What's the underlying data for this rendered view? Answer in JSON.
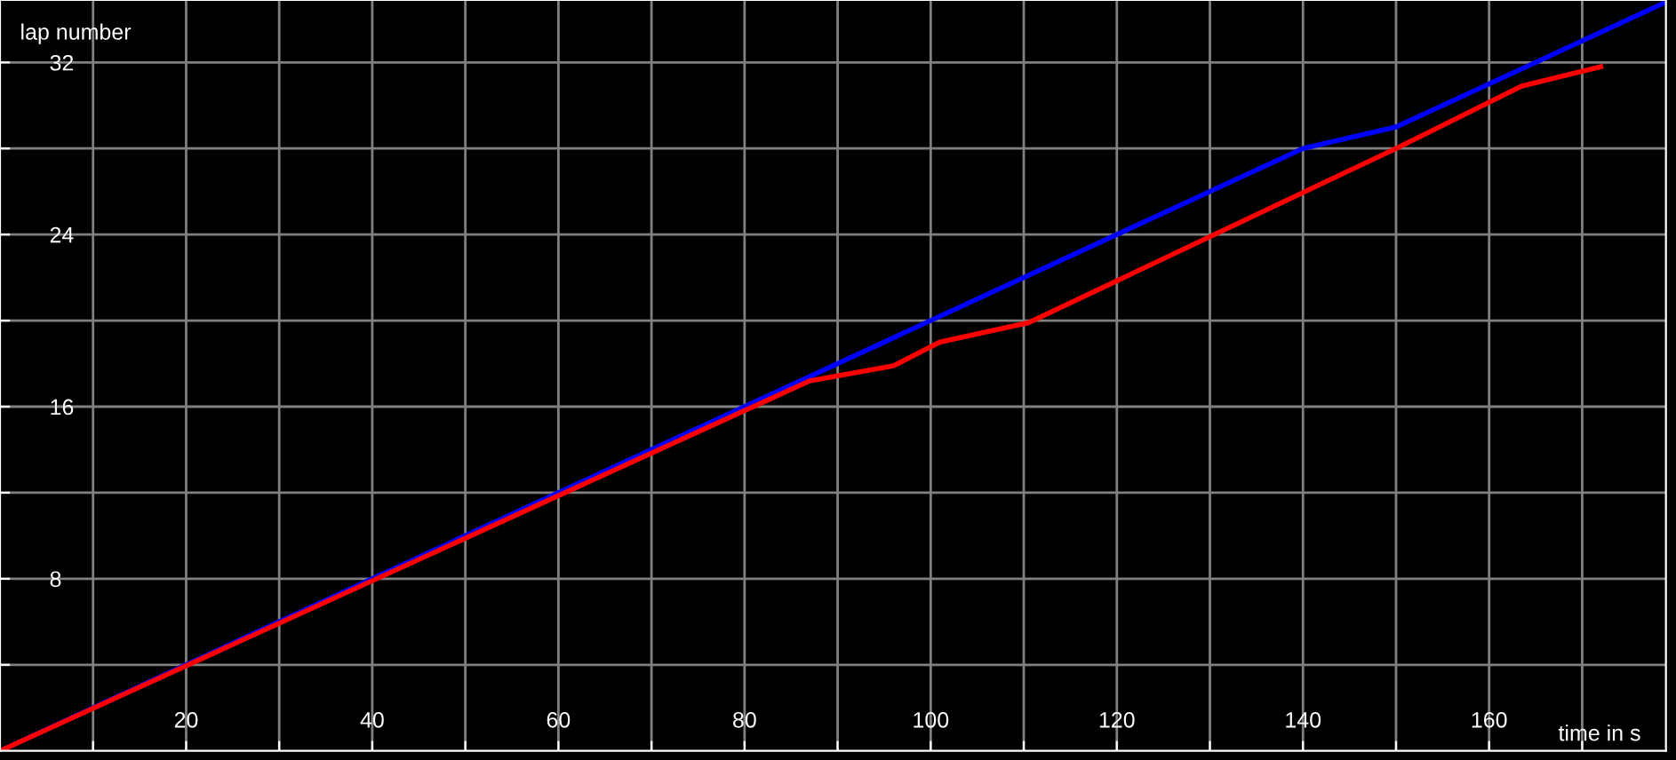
{
  "chart_data": {
    "type": "line",
    "xlabel": "time in s",
    "ylabel": "lap number",
    "series": [
      {
        "color": "#0000ff",
        "x": [
          0,
          140,
          150,
          179
        ],
        "values": [
          0,
          28,
          29,
          34.8
        ]
      },
      {
        "color": "#ff0000",
        "x": [
          0,
          87,
          96,
          101,
          110.5,
          150,
          163.5,
          172
        ],
        "values": [
          0,
          17.2,
          17.9,
          19,
          19.9,
          28,
          30.9,
          31.8
        ]
      }
    ],
    "xlim": [
      0,
      179
    ],
    "ylim": [
      0,
      34.9
    ],
    "xticks": [
      {
        "value": 10,
        "label": null
      },
      20,
      {
        "value": 30,
        "label": null
      },
      40,
      {
        "value": 50,
        "label": null
      },
      60,
      {
        "value": 70,
        "label": null
      },
      80,
      {
        "value": 90,
        "label": null
      },
      100,
      {
        "value": 110,
        "label": null
      },
      120,
      {
        "value": 130,
        "label": null
      },
      140,
      {
        "value": 150,
        "label": null
      },
      160,
      {
        "value": 170,
        "label": null
      }
    ],
    "yticks": [
      {
        "value": 4,
        "label": null
      },
      8,
      {
        "value": 12,
        "label": null
      },
      16,
      {
        "value": 20,
        "label": null
      },
      24,
      {
        "value": 28,
        "label": null
      },
      32
    ],
    "grid": true,
    "legend": false
  }
}
